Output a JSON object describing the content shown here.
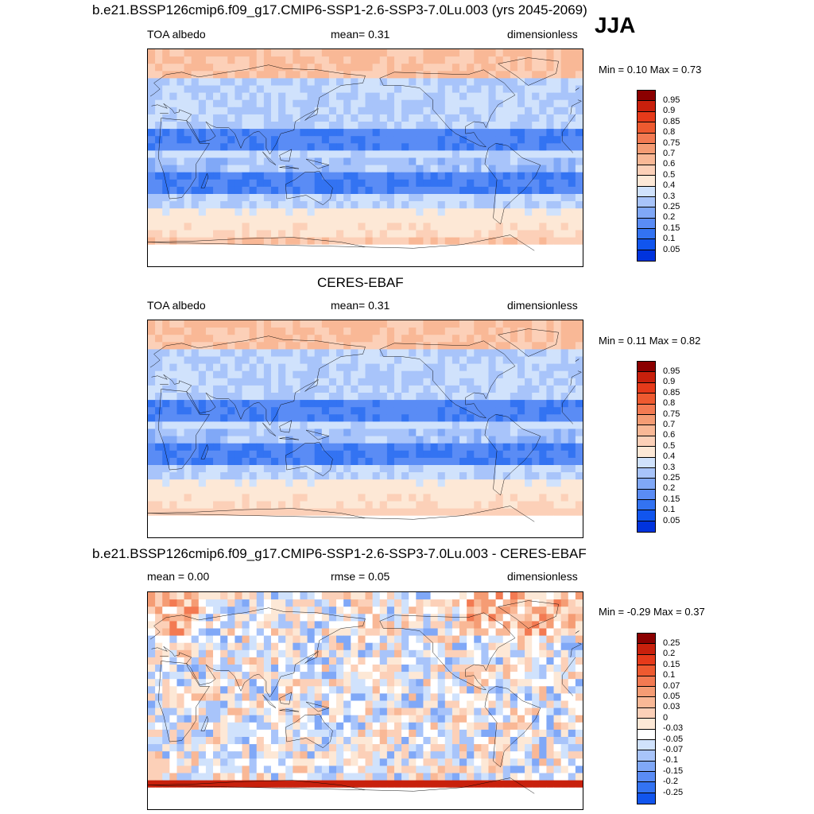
{
  "colors": {
    "abs_levels": [
      "#00007f",
      "#0022aa",
      "#0033dd",
      "#1155ee",
      "#3373f2",
      "#5a8cf5",
      "#80a8f7",
      "#a8c4fa",
      "#d0e2fc",
      "#fde8d6",
      "#fcd0b8",
      "#f9b896",
      "#f59c74",
      "#f37a52",
      "#ee5a30",
      "#e63a1a",
      "#c8200c",
      "#8b0000"
    ],
    "diff_levels": [
      "#00007f",
      "#0022aa",
      "#0033dd",
      "#1155ee",
      "#3373f2",
      "#5a8cf5",
      "#80a8f7",
      "#a8c4fa",
      "#d0e2fc",
      "#ffffff",
      "#fde8d6",
      "#fcd0b8",
      "#f9b896",
      "#f59c74",
      "#f37a52",
      "#ee5a30",
      "#e63a1a",
      "#c8200c",
      "#8b0000"
    ]
  },
  "panels": [
    {
      "title": "b.e21.BSSP126cmip6.f09_g17.CMIP6-SSP1-2.6-SSP3-7.0Lu.003 (yrs 2045-2069)",
      "left_label": "TOA albedo",
      "center_label": "mean=   0.31",
      "right_label": "dimensionless",
      "minmax": "Min =   0.10 Max =   0.73",
      "colorbar_labels": [
        "0.95",
        "0.9",
        "0.85",
        "0.8",
        "0.75",
        "0.7",
        "0.6",
        "0.5",
        "0.4",
        "0.3",
        "0.25",
        "0.2",
        "0.15",
        "0.1",
        "0.05"
      ]
    },
    {
      "title": "CERES-EBAF",
      "left_label": "TOA albedo",
      "center_label": "mean=   0.31",
      "right_label": "dimensionless",
      "minmax": "Min =   0.11 Max =   0.82",
      "colorbar_labels": [
        "0.95",
        "0.9",
        "0.85",
        "0.8",
        "0.75",
        "0.7",
        "0.6",
        "0.5",
        "0.4",
        "0.3",
        "0.25",
        "0.2",
        "0.15",
        "0.1",
        "0.05"
      ]
    },
    {
      "title": "b.e21.BSSP126cmip6.f09_g17.CMIP6-SSP1-2.6-SSP3-7.0Lu.003 - CERES-EBAF",
      "left_label": "mean =   0.00",
      "center_label": "rmse =   0.05",
      "right_label": "dimensionless",
      "minmax": "Min =  -0.29 Max =   0.37",
      "colorbar_labels": [
        "0.25",
        "0.2",
        "0.15",
        "0.1",
        "0.07",
        "0.05",
        "0.03",
        "0",
        "-0.03",
        "-0.05",
        "-0.07",
        "-0.1",
        "-0.15",
        "-0.2",
        "-0.25"
      ]
    }
  ],
  "season": "JJA"
}
